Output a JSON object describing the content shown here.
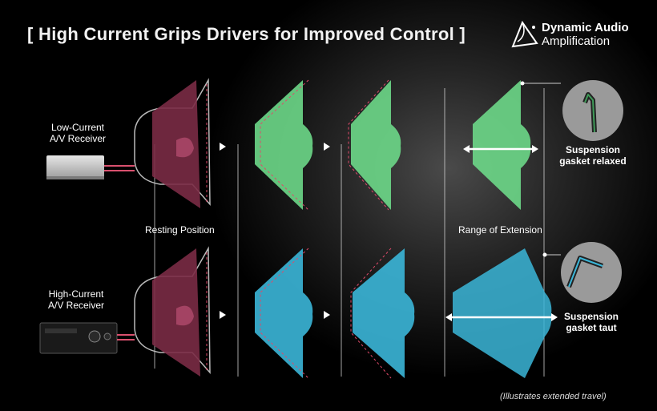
{
  "title": "[ High Current Grips Drivers for Improved Control ]",
  "logo": {
    "line1": "Dynamic Audio",
    "line2": "Amplification"
  },
  "rows": [
    {
      "receiver_label": [
        "Low-Current",
        "A/V Receiver"
      ],
      "driver_color": "#6dd888"
    },
    {
      "receiver_label": [
        "High-Current",
        "A/V Receiver"
      ],
      "driver_color": "#3bb6d8"
    }
  ],
  "labels": {
    "resting_position": "Resting Position",
    "range_of_extension": "Range of Extension",
    "suspension_relaxed": [
      "Suspension",
      "gasket relaxed"
    ],
    "suspension_taut": [
      "Suspension",
      "gasket taut"
    ],
    "footnote": "(Illustrates extended travel)"
  },
  "colors": {
    "resting_driver": "#7a2b45",
    "dashed_outline": "#e04a6a"
  }
}
